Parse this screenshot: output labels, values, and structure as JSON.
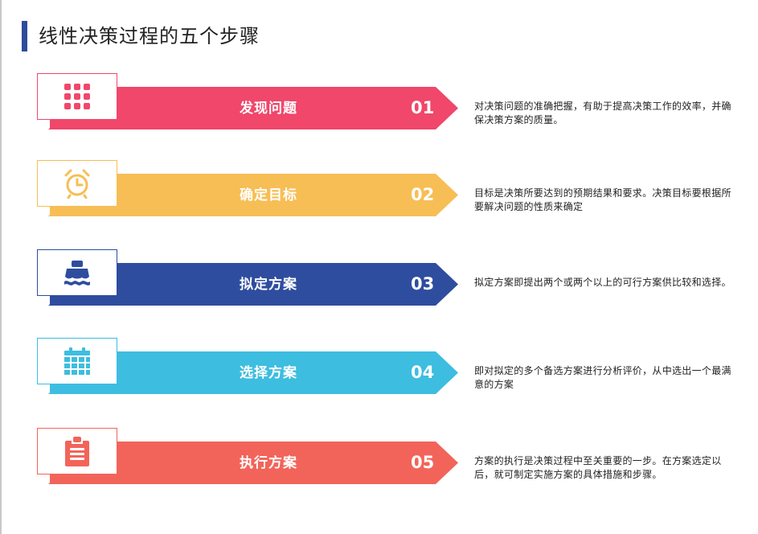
{
  "title": "线性决策过程的五个步骤",
  "steps": [
    {
      "label": "发现问题",
      "number": "01",
      "icon": "grid-icon",
      "color": "#f0476b",
      "desc": "对决策问题的准确把握，有助于提高决策工作的效率，并确保决策方案的质量。"
    },
    {
      "label": "确定目标",
      "number": "02",
      "icon": "alarm-clock-icon",
      "color": "#f7be55",
      "desc": "目标是决策所要达到的预期结果和要求。决策目标要根据所要解决问题的性质来确定"
    },
    {
      "label": "拟定方案",
      "number": "03",
      "icon": "ship-icon",
      "color": "#2f4d9e",
      "desc": "拟定方案即提出两个或两个以上的可行方案供比较和选择。"
    },
    {
      "label": "选择方案",
      "number": "04",
      "icon": "calendar-icon",
      "color": "#3dbde0",
      "desc": "即对拟定的多个备选方案进行分析评价，从中选出一个最满意的方案"
    },
    {
      "label": "执行方案",
      "number": "05",
      "icon": "clipboard-icon",
      "color": "#f2645a",
      "desc": "方案的执行是决策过程中至关重要的一步。在方案选定以后，就可制定实施方案的具体措施和步骤。"
    }
  ]
}
